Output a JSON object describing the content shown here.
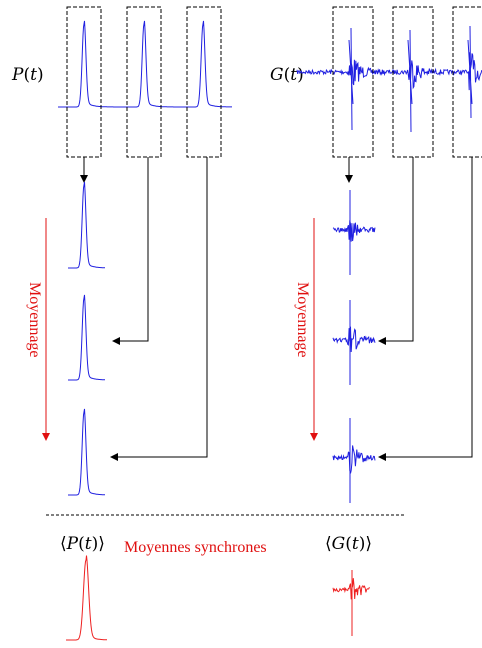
{
  "diagram": {
    "left_signal": {
      "func": "P",
      "arg": "t"
    },
    "right_signal": {
      "func": "G",
      "arg": "t"
    },
    "averaging_label": "Moyennage",
    "average_caption": "Moyennes synchrones",
    "avg_left": {
      "func": "P",
      "arg": "t"
    },
    "avg_right": {
      "func": "G",
      "arg": "t"
    },
    "colors": {
      "signal": "#2020e0",
      "average": "#ee2020",
      "arrow_red": "#e01010",
      "frame": "#000000"
    }
  }
}
